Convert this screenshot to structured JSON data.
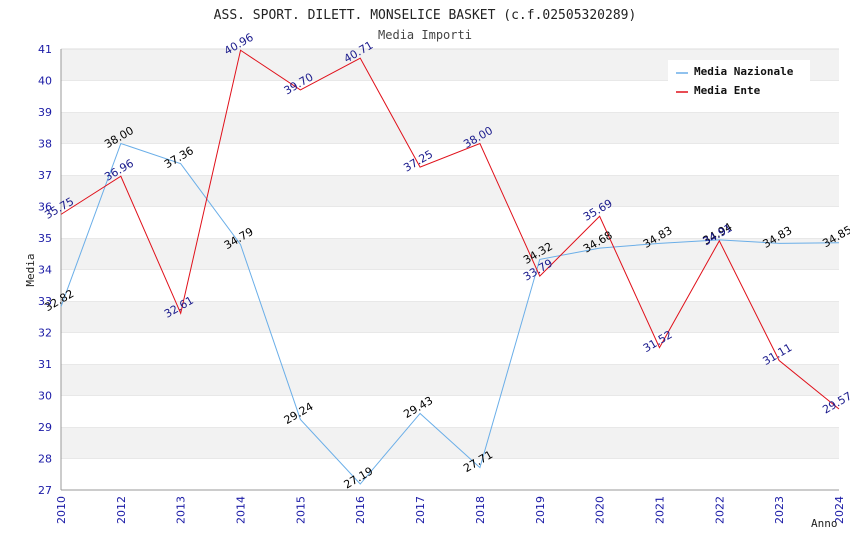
{
  "chart_data": {
    "type": "line",
    "title": "ASS. SPORT. DILETT. MONSELICE BASKET (c.f.02505320289)",
    "subtitle": "Media Importi",
    "xlabel": "Anno",
    "ylabel": "Media",
    "ylim": [
      27,
      41
    ],
    "yticks": [
      "27",
      "28",
      "29",
      "30",
      "31",
      "32",
      "33",
      "34",
      "35",
      "36",
      "37",
      "38",
      "39",
      "40",
      "41"
    ],
    "categories": [
      "2010",
      "2012",
      "2013",
      "2014",
      "2015",
      "2016",
      "2017",
      "2018",
      "2019",
      "2020",
      "2021",
      "2022",
      "2023",
      "2024"
    ],
    "grid": "horizontal bands",
    "legend": "top-right",
    "series": [
      {
        "name": "Media Nazionale",
        "color": "#6aaee8",
        "label_color": "#000000",
        "values": [
          32.82,
          38.0,
          37.36,
          34.79,
          29.24,
          27.19,
          29.43,
          27.71,
          34.32,
          34.68,
          34.83,
          34.94,
          34.83,
          34.85
        ],
        "labels": [
          "32.82",
          "38.00",
          "37.36",
          "34.79",
          "29.24",
          "27.19",
          "29.43",
          "27.71",
          "34.32",
          "34.68",
          "34.83",
          "34.94",
          "34.83",
          "34.85"
        ]
      },
      {
        "name": "Media Ente",
        "color": "#e0101a",
        "label_color": "#1a1a8c",
        "values": [
          35.75,
          36.96,
          32.61,
          40.96,
          39.7,
          40.71,
          37.25,
          38.0,
          33.79,
          35.69,
          31.52,
          34.91,
          31.11,
          29.57
        ],
        "labels": [
          "35.75",
          "36.96",
          "32.61",
          "40.96",
          "39.70",
          "40.71",
          "37.25",
          "38.00",
          "33.79",
          "35.69",
          "31.52",
          "34.91",
          "31.11",
          "29.57"
        ]
      }
    ]
  }
}
